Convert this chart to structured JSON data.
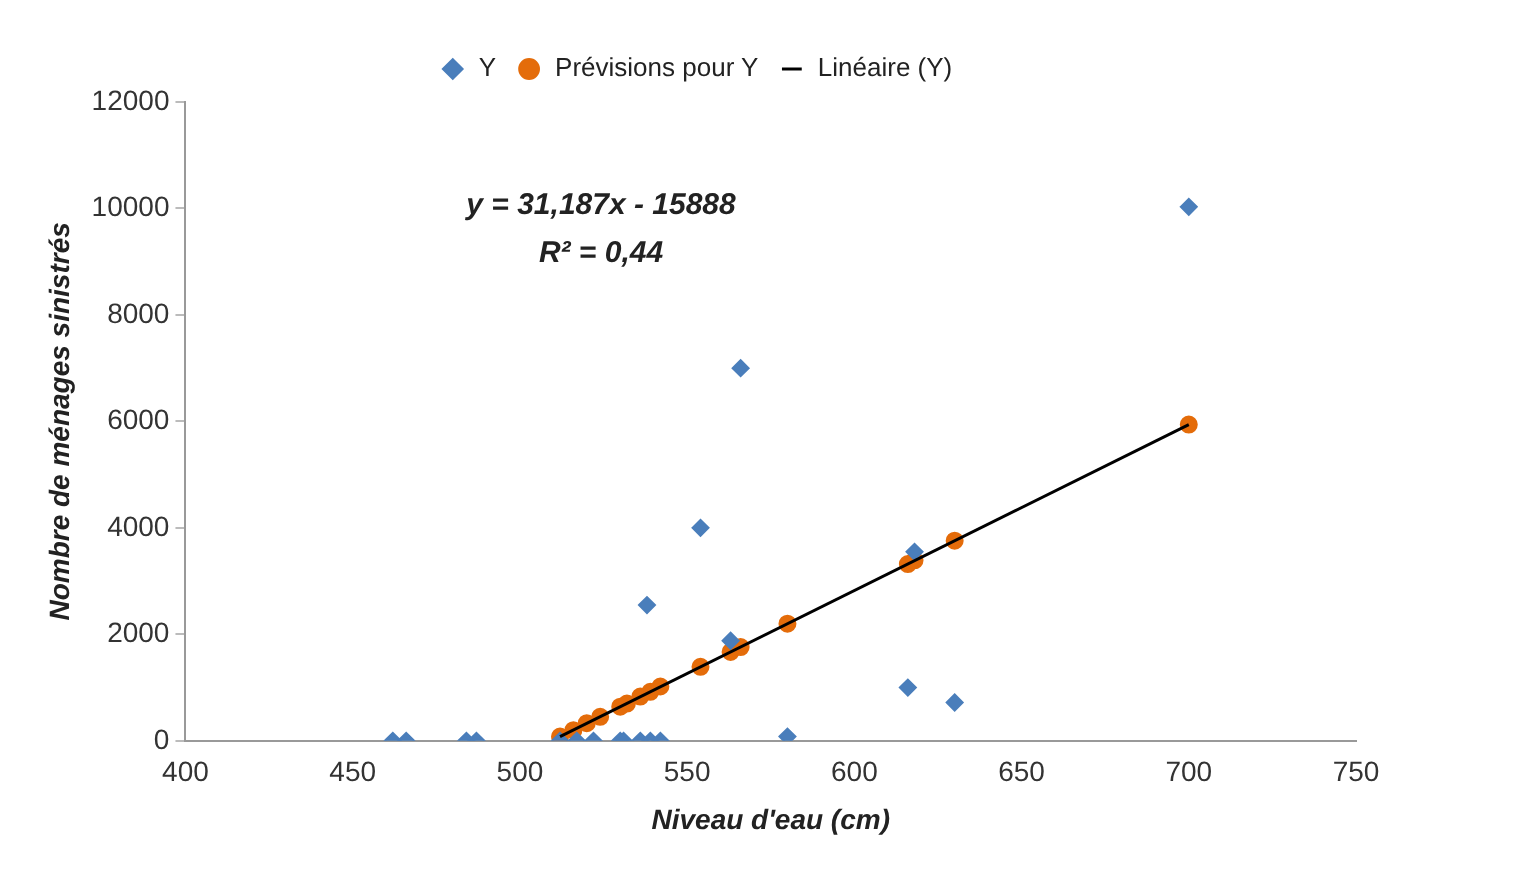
{
  "chart_data": {
    "type": "scatter",
    "xlabel": "Niveau d'eau (cm)",
    "ylabel": "Nombre de ménages sinistrés",
    "xlim": [
      400,
      750
    ],
    "xticks": [
      400,
      450,
      500,
      550,
      600,
      650,
      700,
      750
    ],
    "ylim": [
      0,
      12000
    ],
    "yticks": [
      0,
      2000,
      4000,
      6000,
      8000,
      10000,
      12000
    ],
    "grid": false,
    "legend": "top",
    "annotations": [
      "y = 31,187x - 15888",
      "R² = 0,44"
    ],
    "series": [
      {
        "name": "Y",
        "marker": "diamond",
        "color": "#4a7ebb",
        "x": [
          462,
          466,
          484,
          487,
          512,
          517,
          522,
          530,
          531,
          536,
          539,
          542,
          538,
          554,
          563,
          566,
          580,
          616,
          618,
          630,
          700
        ],
        "values": [
          0,
          0,
          0,
          0,
          0,
          0,
          0,
          0,
          0,
          0,
          0,
          0,
          2550,
          4000,
          1880,
          7000,
          80,
          1000,
          3550,
          720,
          10030
        ]
      },
      {
        "name": "Prévisions pour Y",
        "marker": "circle",
        "color": "#e46c0a",
        "x": [
          512,
          516,
          520,
          524,
          530,
          532,
          536,
          539,
          542,
          554,
          563,
          566,
          580,
          616,
          618,
          630,
          700
        ],
        "values": [
          80,
          200,
          330,
          450,
          640,
          700,
          830,
          920,
          1020,
          1390,
          1670,
          1760,
          2200,
          3320,
          3390,
          3760,
          5940
        ]
      },
      {
        "name": "Linéaire (Y)",
        "type": "line",
        "marker": "none",
        "line_style": "solid",
        "color": "#000000",
        "x": [
          512,
          700
        ],
        "values": [
          80,
          5940
        ]
      }
    ]
  }
}
